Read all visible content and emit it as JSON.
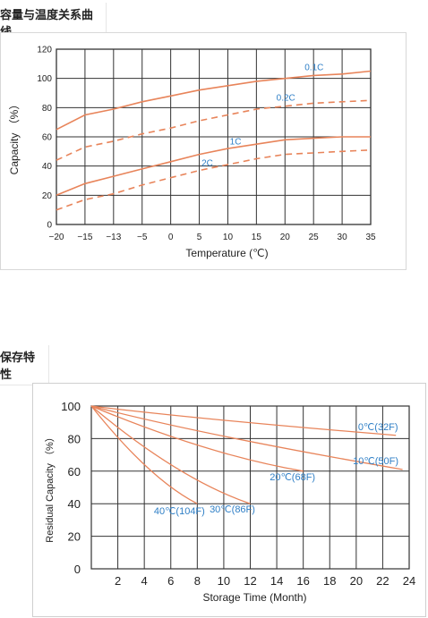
{
  "sections": [
    {
      "title": "容量与温度关系曲线"
    },
    {
      "title": "保存特性"
    }
  ],
  "colors": {
    "curve": "#e8845a",
    "label": "#2f7fc6",
    "grid": "#333333"
  },
  "chart_data": [
    {
      "type": "line",
      "xlabel": "Temperature (℃)",
      "ylabel": "Capacity （%）",
      "x_ticks": [
        -20,
        -15,
        -13,
        -5,
        0,
        5,
        10,
        15,
        20,
        25,
        30,
        35
      ],
      "y_ticks": [
        0,
        20,
        40,
        60,
        80,
        100,
        120
      ],
      "ylim": [
        0,
        120
      ],
      "grid": true,
      "series": [
        {
          "name": "0.1C",
          "dashed": false,
          "x": [
            -20,
            -15,
            -13,
            -5,
            0,
            5,
            10,
            15,
            20,
            25,
            30,
            35
          ],
          "values": [
            65,
            75,
            79,
            84,
            88,
            92,
            95,
            98,
            100,
            102,
            103,
            105
          ]
        },
        {
          "name": "0.2C",
          "dashed": true,
          "x": [
            -20,
            -15,
            -13,
            -5,
            0,
            5,
            10,
            15,
            20,
            25,
            30,
            35
          ],
          "values": [
            44,
            53,
            57,
            62,
            66,
            71,
            75,
            79,
            81,
            83,
            84,
            85
          ]
        },
        {
          "name": "1C",
          "dashed": false,
          "x": [
            -20,
            -15,
            -13,
            -5,
            0,
            5,
            10,
            15,
            20,
            25,
            30,
            35
          ],
          "values": [
            20,
            28,
            33,
            38,
            43,
            48,
            52,
            55,
            58,
            59,
            60,
            60
          ]
        },
        {
          "name": "2C",
          "dashed": true,
          "x": [
            -20,
            -15,
            -13,
            -5,
            0,
            5,
            10,
            15,
            20,
            25,
            30,
            35
          ],
          "values": [
            10,
            17,
            21,
            27,
            32,
            37,
            41,
            45,
            48,
            49,
            50,
            51
          ]
        }
      ]
    },
    {
      "type": "line",
      "xlabel": "Storage Time (Month)",
      "ylabel": "Residual Capacity （%）",
      "x_ticks": [
        2,
        4,
        6,
        8,
        10,
        12,
        14,
        16,
        18,
        20,
        22,
        24
      ],
      "y_ticks": [
        0,
        20,
        40,
        60,
        80,
        100
      ],
      "xlim": [
        0,
        24
      ],
      "ylim": [
        0,
        100
      ],
      "grid": true,
      "series": [
        {
          "name": "0℃(32F)",
          "x": [
            0,
            23
          ],
          "values": [
            100,
            82
          ]
        },
        {
          "name": "10℃(50F)",
          "x": [
            0,
            23.5
          ],
          "values": [
            100,
            61
          ]
        },
        {
          "name": "20℃(68F)",
          "x": [
            0,
            16
          ],
          "values": [
            100,
            60
          ]
        },
        {
          "name": "30℃(86F)",
          "x": [
            0,
            12
          ],
          "values": [
            100,
            40
          ]
        },
        {
          "name": "40℃(104F)",
          "x": [
            0,
            8
          ],
          "values": [
            100,
            40
          ]
        }
      ]
    }
  ]
}
